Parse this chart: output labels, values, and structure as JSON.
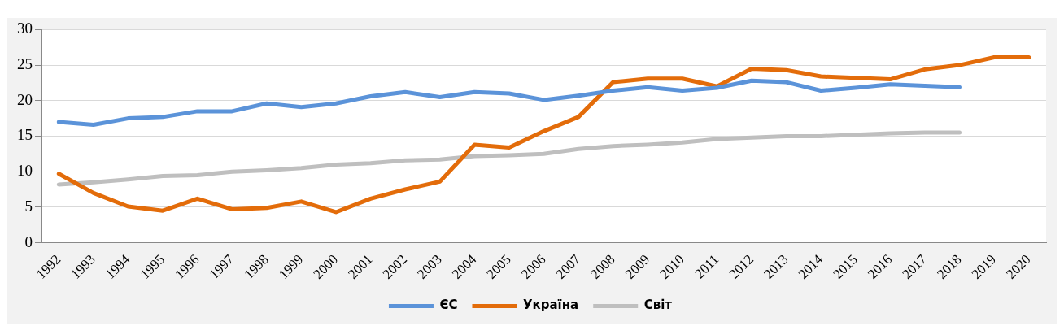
{
  "chart_data": {
    "type": "line",
    "categories": [
      "1992",
      "1993",
      "1994",
      "1995",
      "1996",
      "1997",
      "1998",
      "1999",
      "2000",
      "2001",
      "2002",
      "2003",
      "2004",
      "2005",
      "2006",
      "2007",
      "2008",
      "2009",
      "2010",
      "2011",
      "2012",
      "2013",
      "2014",
      "2015",
      "2016",
      "2017",
      "2018",
      "2019",
      "2020"
    ],
    "series": [
      {
        "name": "ЄС",
        "color": "#5b93d9",
        "values": [
          17,
          16.6,
          17.5,
          17.7,
          18.5,
          18.5,
          19.6,
          19.1,
          19.6,
          20.6,
          21.2,
          20.5,
          21.2,
          21.0,
          20.1,
          20.7,
          21.4,
          21.9,
          21.4,
          21.8,
          22.8,
          22.6,
          21.4,
          21.8,
          22.3,
          22.1,
          21.9,
          null,
          null
        ]
      },
      {
        "name": "Україна",
        "color": "#e36c0a",
        "values": [
          9.7,
          7.0,
          5.1,
          4.5,
          6.2,
          4.7,
          4.9,
          5.8,
          4.3,
          6.2,
          7.5,
          8.6,
          13.8,
          13.4,
          15.7,
          17.7,
          22.6,
          23.1,
          23.1,
          22.0,
          24.5,
          24.3,
          23.4,
          23.2,
          23.0,
          24.4,
          25.0,
          26.1,
          26.1
        ]
      },
      {
        "name": "Світ",
        "color": "#bfbfbf",
        "values": [
          8.2,
          8.5,
          8.9,
          9.4,
          9.5,
          10.0,
          10.2,
          10.5,
          11.0,
          11.2,
          11.6,
          11.7,
          12.2,
          12.3,
          12.5,
          13.2,
          13.6,
          13.8,
          14.1,
          14.6,
          14.8,
          15.0,
          15.0,
          15.2,
          15.4,
          15.5,
          15.5,
          null,
          null
        ]
      }
    ],
    "ylim": [
      0,
      30
    ],
    "yticks": [
      0,
      5,
      10,
      15,
      20,
      25,
      30
    ],
    "grid": "y",
    "legend": "bottom",
    "marker": "none",
    "line_style": "solid"
  }
}
